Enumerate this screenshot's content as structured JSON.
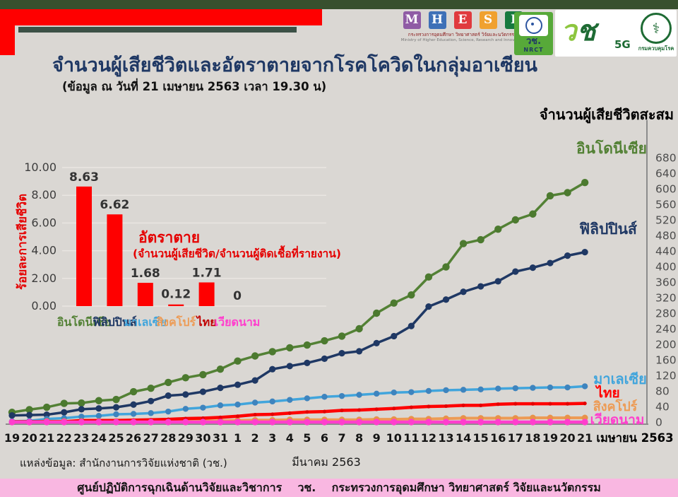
{
  "header": {
    "title": "จำนวนผู้เสียชีวิตและอัตราตายจากโรคโควิดในกลุ่มอาเซียน",
    "subtitle": "(ข้อมูล ณ วันที่ 21 เมษายน 2563 เวลา 19.30 น)",
    "title_color": "#1f3864",
    "accent_red": "#fe0000",
    "accent_green_strip": "#38502e",
    "logos": {
      "mhesi": {
        "letters": [
          "M",
          "H",
          "E",
          "S",
          "I"
        ],
        "letter_colors": [
          "#8f5ba5",
          "#3e70b7",
          "#e03a3e",
          "#f0a12f",
          "#17793f"
        ],
        "line1": "กระทรวงการอุดมศึกษา วิทยาศาสตร์ วิจัยและนวัตกรรม",
        "line2": "Ministry of Higher Education, Science, Research and Innovation"
      },
      "nrct": {
        "th": "วช.",
        "en": "NRCT"
      },
      "nrct_5g": {
        "mark_char1": "ว",
        "mark_char2": "ช",
        "sub": "5G"
      },
      "ddc": {
        "symbol": "⚕",
        "name": "กรมควบคุมโรค"
      }
    }
  },
  "right_axis_title": "จำนวนผู้เสียชีวิตสะสม",
  "source_line": "แหล่งข้อมูล: สำนักงานการวิจัยแห่งชาติ (วช.)",
  "footer": {
    "text": "ศูนย์ปฏิบัติการฉุกเฉินด้านวิจัยและวิชาการ    วช.    กระทรวงการอุดมศึกษา วิทยาศาสตร์ วิจัยและนวัตกรรม",
    "bg": "#f9b7e1"
  },
  "chart_data": [
    {
      "type": "bar",
      "title": "อัตราตาย",
      "subtitle": "(จำนวนผู้เสียชีวิต/จำนวนผู้ติดเชื้อที่รายงาน)",
      "ylabel": "ร้อยละการเสียชีวิต",
      "categories": [
        "อินโดนีเซีย",
        "ฟิลิปปินส์",
        "มาเลเซีย",
        "สิงคโปร์",
        "ไทย",
        "เวียดนาม"
      ],
      "category_colors": [
        "#538135",
        "#1f3864",
        "#41a5dc",
        "#ed9b55",
        "#c00000",
        "#ff3ecd"
      ],
      "values": [
        8.63,
        6.62,
        1.68,
        0.12,
        1.71,
        0
      ],
      "value_labels": [
        "8.63",
        "6.62",
        "1.68",
        "0.12",
        "1.71",
        "0"
      ],
      "bar_color": "#fe0000",
      "annotation_color": "#e50000",
      "yticks": [
        0,
        2,
        4,
        6,
        8,
        10
      ],
      "ytick_labels": [
        "0.00",
        "2.00",
        "4.00",
        "6.00",
        "8.00",
        "10.00"
      ],
      "ylim": [
        0,
        10
      ],
      "grid": true
    },
    {
      "type": "line",
      "x_labels": [
        "19",
        "20",
        "21",
        "22",
        "23",
        "24",
        "25",
        "26",
        "27",
        "28",
        "29",
        "30",
        "31",
        "1",
        "2",
        "3",
        "4",
        "5",
        "6",
        "7",
        "8",
        "9",
        "10",
        "11",
        "12",
        "13",
        "14",
        "15",
        "16",
        "17",
        "18",
        "19",
        "20",
        "21"
      ],
      "month_label_march": "มีนาคม 2563",
      "month_label_april": "เมษายน 2563",
      "yticks": [
        0,
        40,
        80,
        120,
        160,
        200,
        240,
        280,
        320,
        360,
        400,
        440,
        480,
        520,
        560,
        600,
        640,
        680
      ],
      "ylim": [
        0,
        700
      ],
      "grid": false,
      "legend_position": "right-of-lines",
      "series": [
        {
          "name": "อินโดนีเซีย",
          "color": "#538135",
          "values": [
            25,
            32,
            38,
            48,
            49,
            55,
            58,
            78,
            87,
            102,
            114,
            122,
            136,
            157,
            170,
            181,
            191,
            198,
            209,
            221,
            240,
            280,
            306,
            327,
            373,
            399,
            459,
            469,
            496,
            520,
            535,
            582,
            590,
            616
          ]
        },
        {
          "name": "ฟิลิปปินส์",
          "color": "#1f3864",
          "values": [
            17,
            18,
            19,
            25,
            33,
            35,
            38,
            45,
            54,
            68,
            71,
            78,
            88,
            96,
            107,
            136,
            144,
            152,
            163,
            177,
            182,
            203,
            221,
            247,
            297,
            315,
            335,
            349,
            362,
            387,
            397,
            409,
            428,
            437
          ]
        },
        {
          "name": "มาเลเซีย",
          "color": "#41a5dc",
          "values": [
            2,
            3,
            8,
            10,
            14,
            16,
            20,
            21,
            23,
            27,
            34,
            37,
            43,
            45,
            50,
            53,
            57,
            61,
            65,
            67,
            70,
            73,
            76,
            77,
            80,
            82,
            83,
            84,
            86,
            87,
            88,
            89,
            89,
            92
          ]
        },
        {
          "name": "ไทย",
          "color": "#ff0000",
          "values": [
            1,
            1,
            1,
            1,
            4,
            4,
            4,
            5,
            6,
            7,
            9,
            10,
            12,
            15,
            19,
            20,
            23,
            26,
            27,
            30,
            31,
            33,
            35,
            38,
            40,
            41,
            43,
            43,
            46,
            47,
            47,
            47,
            47,
            48
          ]
        },
        {
          "name": "สิงคโปร์",
          "color": "#ed9b55",
          "values": [
            0,
            0,
            2,
            2,
            2,
            2,
            2,
            2,
            2,
            2,
            3,
            3,
            3,
            4,
            5,
            5,
            6,
            6,
            6,
            6,
            6,
            7,
            7,
            8,
            8,
            9,
            10,
            10,
            10,
            10,
            11,
            11,
            11,
            11
          ]
        },
        {
          "name": "เวียดนาม",
          "color": "#ff3ecd",
          "values": [
            0,
            0,
            0,
            0,
            0,
            0,
            0,
            0,
            0,
            0,
            0,
            0,
            0,
            0,
            0,
            0,
            0,
            0,
            0,
            0,
            0,
            0,
            0,
            0,
            0,
            0,
            0,
            0,
            0,
            0,
            0,
            0,
            0,
            0
          ]
        }
      ]
    }
  ]
}
